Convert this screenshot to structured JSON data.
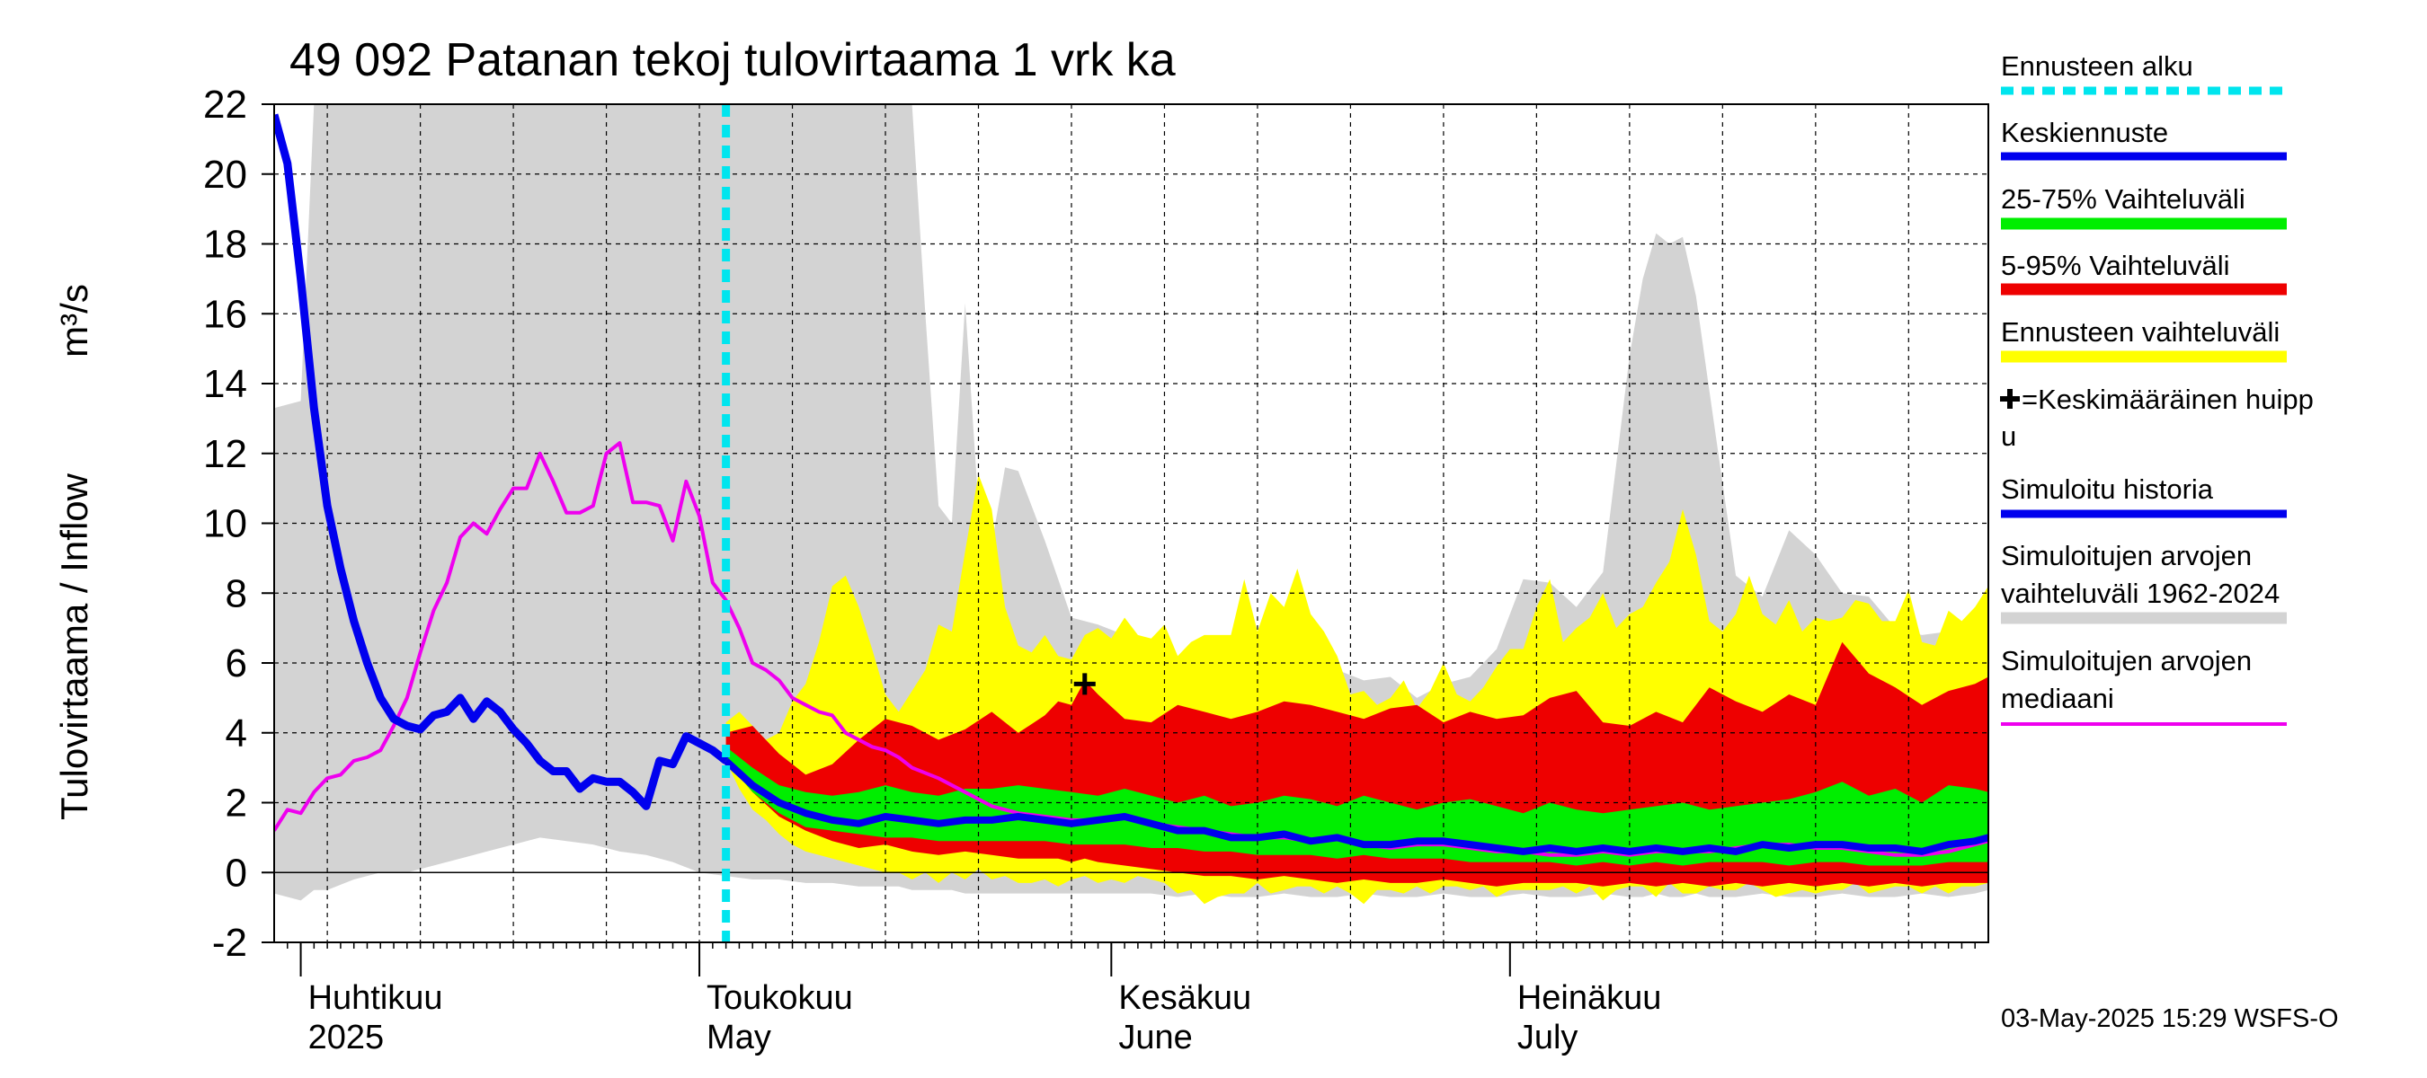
{
  "chart_data": {
    "type": "area",
    "title": "49 092 Patanan tekoj tulovirtaama 1 vrk ka",
    "ylabel": "Tulovirtaama / Inflow",
    "yunit": "m³/s",
    "ylim": [
      -2,
      22
    ],
    "yticks": [
      -2,
      0,
      2,
      4,
      6,
      8,
      10,
      12,
      14,
      16,
      18,
      20,
      22
    ],
    "x_range_days": [
      -32,
      97
    ],
    "x_note": "days relative to 1 May 2025",
    "forecast_start_day": 2,
    "months": [
      {
        "fi": "Huhtikuu",
        "en": "2025",
        "day": -30
      },
      {
        "fi": "Toukokuu",
        "en": "May",
        "day": 0
      },
      {
        "fi": "Kesäkuu",
        "en": "June",
        "day": 31
      },
      {
        "fi": "Heinäkuu",
        "en": "July",
        "day": 61
      }
    ],
    "legend": {
      "forecast_start": "Ennusteen alku",
      "mean_forecast": "Keskiennuste",
      "range_25_75": "25-75% Vaihteluväli",
      "range_5_95": "5-95% Vaihteluväli",
      "forecast_range": "Ennusteen vaihteluväli",
      "mean_peak_line1": "=Keskimääräinen huipp",
      "mean_peak_line2": "u",
      "sim_history": "Simuloitu historia",
      "sim_range_line1": "Simuloitujen arvojen",
      "sim_range_line2": "vaihteluväli 1962-2024",
      "sim_median_line1": "Simuloitujen arvojen",
      "sim_median_line2": "mediaani"
    },
    "footer": "03-May-2025 15:29 WSFS-O",
    "colors": {
      "forecast_start": "#00e5ee",
      "mean_forecast": "#0000ee",
      "range_25_75": "#00ee00",
      "range_5_95": "#ee0000",
      "forecast_range": "#ffff00",
      "sim_history": "#0000ee",
      "sim_range": "#d3d3d3",
      "sim_median": "#ee00ee"
    },
    "mean_peak": {
      "day": 29,
      "value": 5.4
    },
    "series": {
      "sim_history": {
        "x": [
          -32,
          -31,
          -30,
          -29,
          -28,
          -27,
          -26,
          -25,
          -24,
          -23,
          -22,
          -21,
          -20,
          -19,
          -18,
          -17,
          -16,
          -15,
          -14,
          -13,
          -12,
          -11,
          -10,
          -9,
          -8,
          -7,
          -6,
          -5,
          -4,
          -3,
          -2,
          -1,
          0,
          1,
          2
        ],
        "y": [
          21.7,
          20.3,
          17,
          13.3,
          10.5,
          8.7,
          7.2,
          6,
          5,
          4.4,
          4.2,
          4.1,
          4.5,
          4.6,
          5.0,
          4.4,
          4.9,
          4.6,
          4.1,
          3.7,
          3.2,
          2.9,
          2.9,
          2.4,
          2.7,
          2.6,
          2.6,
          2.3,
          1.9,
          3.2,
          3.1,
          3.9,
          3.7,
          3.5,
          3.2
        ]
      },
      "mean_forecast": {
        "x": [
          2,
          4,
          6,
          8,
          10,
          12,
          14,
          16,
          18,
          20,
          22,
          24,
          26,
          28,
          30,
          32,
          34,
          36,
          38,
          40,
          42,
          44,
          46,
          48,
          50,
          52,
          54,
          56,
          58,
          60,
          62,
          64,
          66,
          68,
          70,
          72,
          74,
          76,
          78,
          80,
          82,
          84,
          86,
          88,
          90,
          92,
          94,
          96,
          97
        ],
        "y": [
          3.2,
          2.5,
          2.0,
          1.7,
          1.5,
          1.4,
          1.6,
          1.5,
          1.4,
          1.5,
          1.5,
          1.6,
          1.5,
          1.4,
          1.5,
          1.6,
          1.4,
          1.2,
          1.2,
          1.0,
          1.0,
          1.1,
          0.9,
          1.0,
          0.8,
          0.8,
          0.9,
          0.9,
          0.8,
          0.7,
          0.6,
          0.7,
          0.6,
          0.7,
          0.6,
          0.7,
          0.6,
          0.7,
          0.6,
          0.8,
          0.7,
          0.8,
          0.8,
          0.7,
          0.7,
          0.6,
          0.8,
          0.9,
          1.0
        ]
      },
      "sim_median": {
        "x": [
          -32,
          -31,
          -30,
          -29,
          -28,
          -27,
          -26,
          -25,
          -24,
          -23,
          -22,
          -21,
          -20,
          -19,
          -18,
          -17,
          -16,
          -15,
          -14,
          -13,
          -12,
          -11,
          -10,
          -9,
          -8,
          -7,
          -6,
          -5,
          -4,
          -3,
          -2,
          -1,
          0,
          1,
          2,
          3,
          4,
          5,
          6,
          7,
          8,
          9,
          10,
          11,
          12,
          13,
          14,
          15,
          16,
          18,
          20,
          22,
          24,
          26,
          28,
          30,
          32,
          34,
          36,
          38,
          40,
          42,
          44,
          46,
          48,
          50,
          52,
          54,
          56,
          58,
          60,
          62,
          64,
          66,
          68,
          70,
          72,
          74,
          76,
          78,
          80,
          82,
          84,
          86,
          88,
          90,
          92,
          94,
          96,
          97
        ],
        "y": [
          1.2,
          1.8,
          1.7,
          2.3,
          2.7,
          2.8,
          3.2,
          3.3,
          3.5,
          4.2,
          5.0,
          6.3,
          7.5,
          8.3,
          9.6,
          10.0,
          9.7,
          10.4,
          11.0,
          11.0,
          12.0,
          11.2,
          10.3,
          10.3,
          10.5,
          12.0,
          12.3,
          10.6,
          10.6,
          10.5,
          9.5,
          11.2,
          10.2,
          8.3,
          7.8,
          7.0,
          6.0,
          5.8,
          5.5,
          5.0,
          4.8,
          4.6,
          4.5,
          4.0,
          3.8,
          3.6,
          3.5,
          3.3,
          3.0,
          2.7,
          2.3,
          1.9,
          1.7,
          1.6,
          1.5,
          1.5,
          1.6,
          1.4,
          1.3,
          1.2,
          1.1,
          1.0,
          1.0,
          0.9,
          1.0,
          0.8,
          0.7,
          0.8,
          0.8,
          0.7,
          0.6,
          0.6,
          0.5,
          0.5,
          0.6,
          0.5,
          0.6,
          0.6,
          0.6,
          0.7,
          0.8,
          0.8,
          0.7,
          0.7,
          0.6,
          0.5,
          0.5,
          0.6,
          0.8,
          0.9
        ]
      },
      "sim_range": {
        "x": [
          -32,
          -30,
          -29,
          -28,
          -26,
          -24,
          -22,
          -20,
          -18,
          -16,
          -14,
          -12,
          -10,
          -8,
          -6,
          -4,
          -2,
          0,
          2,
          4,
          6,
          8,
          10,
          12,
          14,
          15,
          16,
          17,
          18,
          19,
          20,
          21,
          22,
          23,
          24,
          26,
          28,
          30,
          32,
          34,
          36,
          38,
          40,
          42,
          44,
          46,
          48,
          50,
          52,
          54,
          56,
          58,
          60,
          62,
          64,
          66,
          68,
          70,
          71,
          72,
          73,
          74,
          75,
          76,
          78,
          80,
          82,
          84,
          86,
          88,
          90,
          92,
          94,
          96,
          97
        ],
        "upper": [
          13.3,
          13.5,
          22,
          22,
          22,
          22,
          22,
          22,
          22,
          22,
          22,
          22,
          22,
          22,
          22,
          22,
          22,
          22,
          22,
          22,
          22,
          22,
          22,
          22,
          22,
          22,
          22,
          16,
          10.5,
          10,
          16.3,
          10.5,
          9.4,
          11.6,
          11.5,
          9.5,
          7.3,
          7.1,
          6.8,
          5.5,
          5.2,
          5.8,
          5.8,
          6.4,
          5.8,
          6.3,
          5.8,
          5.5,
          5.6,
          5.0,
          5.4,
          5.6,
          6.4,
          8.4,
          8.3,
          7.6,
          8.6,
          14.8,
          17,
          18.3,
          18,
          18.2,
          16.5,
          13.8,
          8.5,
          7.9,
          9.8,
          9.1,
          8.0,
          7.9,
          7.0,
          6.8,
          6.9,
          6.8,
          6.8
        ],
        "lower": [
          -0.6,
          -0.8,
          -0.5,
          -0.5,
          -0.2,
          0.0,
          0.0,
          0.2,
          0.4,
          0.6,
          0.8,
          1.0,
          0.9,
          0.8,
          0.6,
          0.5,
          0.3,
          0.0,
          -0.1,
          -0.2,
          -0.2,
          -0.3,
          -0.3,
          -0.4,
          -0.4,
          -0.4,
          -0.5,
          -0.5,
          -0.5,
          -0.5,
          -0.6,
          -0.6,
          -0.6,
          -0.6,
          -0.6,
          -0.6,
          -0.6,
          -0.6,
          -0.6,
          -0.6,
          -0.7,
          -0.6,
          -0.7,
          -0.7,
          -0.6,
          -0.7,
          -0.7,
          -0.6,
          -0.7,
          -0.7,
          -0.6,
          -0.7,
          -0.7,
          -0.6,
          -0.7,
          -0.7,
          -0.6,
          -0.7,
          -0.7,
          -0.6,
          -0.7,
          -0.7,
          -0.6,
          -0.7,
          -0.7,
          -0.6,
          -0.7,
          -0.7,
          -0.6,
          -0.7,
          -0.7,
          -0.6,
          -0.7,
          -0.6,
          -0.5
        ]
      },
      "forecast_range": {
        "x": [
          2,
          3,
          4,
          5,
          6,
          7,
          8,
          9,
          10,
          11,
          12,
          13,
          14,
          15,
          16,
          17,
          18,
          19,
          20,
          21,
          22,
          23,
          24,
          25,
          26,
          27,
          28,
          29,
          30,
          31,
          32,
          33,
          34,
          35,
          36,
          37,
          38,
          39,
          40,
          41,
          42,
          43,
          44,
          45,
          46,
          47,
          48,
          49,
          50,
          51,
          52,
          53,
          54,
          55,
          56,
          57,
          58,
          59,
          60,
          61,
          62,
          63,
          64,
          65,
          66,
          67,
          68,
          69,
          70,
          71,
          72,
          73,
          74,
          75,
          76,
          77,
          78,
          79,
          80,
          81,
          82,
          83,
          84,
          85,
          86,
          87,
          88,
          89,
          90,
          91,
          92,
          93,
          94,
          95,
          96,
          97
        ],
        "upper": [
          4.3,
          4.6,
          4.2,
          3.8,
          4.0,
          4.9,
          5.4,
          6.6,
          8.2,
          8.5,
          7.6,
          6.4,
          5.1,
          4.6,
          5.2,
          5.8,
          7.1,
          6.9,
          9.2,
          11.4,
          10.4,
          7.6,
          6.5,
          6.3,
          6.8,
          6.2,
          6.1,
          6.8,
          7.0,
          6.7,
          7.3,
          6.8,
          6.7,
          7.1,
          6.2,
          6.6,
          6.8,
          6.8,
          6.8,
          8.4,
          6.9,
          8.0,
          7.6,
          8.7,
          7.4,
          6.9,
          6.2,
          5.1,
          5.2,
          4.8,
          5.0,
          5.5,
          4.7,
          5.2,
          6.0,
          5.1,
          4.9,
          5.3,
          5.9,
          6.4,
          6.4,
          7.6,
          8.4,
          6.6,
          7.0,
          7.3,
          8.0,
          7.0,
          7.4,
          7.6,
          8.3,
          8.9,
          10.4,
          9.1,
          7.2,
          6.9,
          7.4,
          8.5,
          7.4,
          7.1,
          7.8,
          6.9,
          7.3,
          7.2,
          7.3,
          7.8,
          7.7,
          7.2,
          7.2,
          8.1,
          6.6,
          6.5,
          7.5,
          7.2,
          7.6,
          8.2
        ],
        "lower": [
          3.2,
          2.4,
          1.8,
          1.5,
          1.1,
          0.8,
          0.6,
          0.5,
          0.4,
          0.3,
          0.2,
          0.1,
          0.0,
          0.0,
          -0.2,
          0.0,
          -0.3,
          0.0,
          -0.2,
          0.1,
          -0.2,
          -0.1,
          -0.3,
          -0.3,
          -0.2,
          -0.4,
          -0.2,
          -0.1,
          -0.3,
          -0.2,
          -0.3,
          -0.1,
          -0.2,
          -0.3,
          -0.6,
          -0.5,
          -0.9,
          -0.7,
          -0.6,
          -0.6,
          -0.3,
          -0.6,
          -0.5,
          -0.4,
          -0.4,
          -0.6,
          -0.4,
          -0.6,
          -0.9,
          -0.5,
          -0.5,
          -0.6,
          -0.4,
          -0.6,
          -0.4,
          -0.4,
          -0.5,
          -0.4,
          -0.7,
          -0.5,
          -0.5,
          -0.5,
          -0.5,
          -0.4,
          -0.6,
          -0.4,
          -0.8,
          -0.5,
          -0.4,
          -0.4,
          -0.7,
          -0.3,
          -0.6,
          -0.6,
          -0.4,
          -0.5,
          -0.5,
          -0.3,
          -0.5,
          -0.7,
          -0.6,
          -0.5,
          -0.6,
          -0.5,
          -0.5,
          -0.3,
          -0.6,
          -0.5,
          -0.4,
          -0.4,
          -0.6,
          -0.4,
          -0.6,
          -0.4,
          -0.4,
          -0.3
        ]
      },
      "range_5_95": {
        "x": [
          2,
          4,
          6,
          8,
          10,
          12,
          14,
          16,
          18,
          20,
          22,
          24,
          26,
          27,
          28,
          29,
          30,
          32,
          34,
          36,
          38,
          40,
          42,
          44,
          46,
          48,
          50,
          52,
          54,
          56,
          58,
          60,
          62,
          64,
          66,
          68,
          70,
          72,
          74,
          76,
          78,
          80,
          82,
          84,
          86,
          88,
          90,
          92,
          94,
          96,
          97
        ],
        "upper": [
          4.0,
          4.2,
          3.4,
          2.8,
          3.1,
          3.8,
          4.4,
          4.2,
          3.8,
          4.1,
          4.6,
          4.0,
          4.5,
          4.9,
          4.8,
          5.5,
          5.1,
          4.4,
          4.3,
          4.8,
          4.6,
          4.4,
          4.6,
          4.9,
          4.8,
          4.6,
          4.4,
          4.7,
          4.8,
          4.3,
          4.6,
          4.4,
          4.5,
          5.0,
          5.2,
          4.3,
          4.2,
          4.6,
          4.3,
          5.3,
          4.9,
          4.6,
          5.1,
          4.8,
          6.6,
          5.7,
          5.3,
          4.8,
          5.2,
          5.4,
          5.6
        ],
        "lower": [
          3.2,
          2.3,
          1.6,
          1.2,
          0.9,
          0.7,
          0.8,
          0.6,
          0.5,
          0.6,
          0.5,
          0.4,
          0.4,
          0.4,
          0.3,
          0.4,
          0.3,
          0.2,
          0.1,
          0.0,
          -0.1,
          -0.1,
          -0.2,
          -0.1,
          -0.2,
          -0.3,
          -0.2,
          -0.3,
          -0.3,
          -0.2,
          -0.3,
          -0.4,
          -0.3,
          -0.3,
          -0.3,
          -0.4,
          -0.3,
          -0.4,
          -0.3,
          -0.4,
          -0.3,
          -0.4,
          -0.3,
          -0.4,
          -0.3,
          -0.4,
          -0.3,
          -0.4,
          -0.3,
          -0.3,
          -0.3
        ]
      },
      "range_25_75": {
        "x": [
          2,
          4,
          6,
          8,
          10,
          12,
          14,
          16,
          18,
          20,
          22,
          24,
          26,
          28,
          30,
          32,
          34,
          36,
          38,
          40,
          42,
          44,
          46,
          48,
          50,
          52,
          54,
          56,
          58,
          60,
          62,
          64,
          66,
          68,
          70,
          72,
          74,
          76,
          78,
          80,
          82,
          84,
          86,
          88,
          90,
          92,
          94,
          96,
          97
        ],
        "upper": [
          3.6,
          3.0,
          2.5,
          2.3,
          2.2,
          2.3,
          2.5,
          2.3,
          2.2,
          2.4,
          2.4,
          2.5,
          2.4,
          2.3,
          2.2,
          2.4,
          2.2,
          2.0,
          2.2,
          1.9,
          2.0,
          2.2,
          2.1,
          1.9,
          2.2,
          2.0,
          1.8,
          2.0,
          2.1,
          1.9,
          1.7,
          2.0,
          1.8,
          1.7,
          1.8,
          1.9,
          2.0,
          1.8,
          1.9,
          2.0,
          2.1,
          2.3,
          2.6,
          2.2,
          2.4,
          2.0,
          2.5,
          2.4,
          2.3
        ],
        "lower": [
          3.2,
          2.3,
          1.7,
          1.3,
          1.2,
          1.1,
          1.0,
          1.0,
          0.9,
          0.9,
          0.9,
          0.9,
          0.9,
          0.8,
          0.8,
          0.8,
          0.7,
          0.7,
          0.6,
          0.6,
          0.5,
          0.5,
          0.5,
          0.4,
          0.5,
          0.4,
          0.4,
          0.4,
          0.3,
          0.3,
          0.3,
          0.3,
          0.2,
          0.3,
          0.2,
          0.3,
          0.2,
          0.3,
          0.3,
          0.3,
          0.2,
          0.3,
          0.3,
          0.2,
          0.2,
          0.2,
          0.3,
          0.3,
          0.3
        ]
      }
    }
  }
}
